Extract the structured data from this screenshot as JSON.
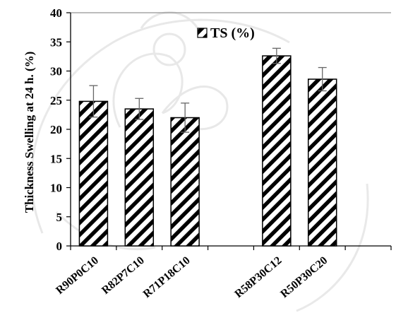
{
  "chart_data": {
    "type": "bar",
    "title": "",
    "xlabel": "",
    "ylabel": "Thickness Swelling at 24 h. (%)",
    "ylim": [
      0,
      40
    ],
    "yticks": [
      0,
      5,
      10,
      15,
      20,
      25,
      30,
      35,
      40
    ],
    "grid": false,
    "legend_position": "top-center",
    "slots": 7,
    "categories": [
      "R90P0C10",
      "R82P7C10",
      "R71P18C10",
      "R58P30C12",
      "R50P30C20"
    ],
    "category_slots": [
      0,
      1,
      2,
      4,
      5
    ],
    "series": [
      {
        "name": "TS (%)",
        "values": [
          24.8,
          23.5,
          22.0,
          32.6,
          28.6
        ],
        "errors": [
          2.7,
          1.8,
          2.5,
          1.3,
          2.0
        ],
        "pattern": "diagonal-stripes",
        "color": "#000000"
      }
    ]
  }
}
